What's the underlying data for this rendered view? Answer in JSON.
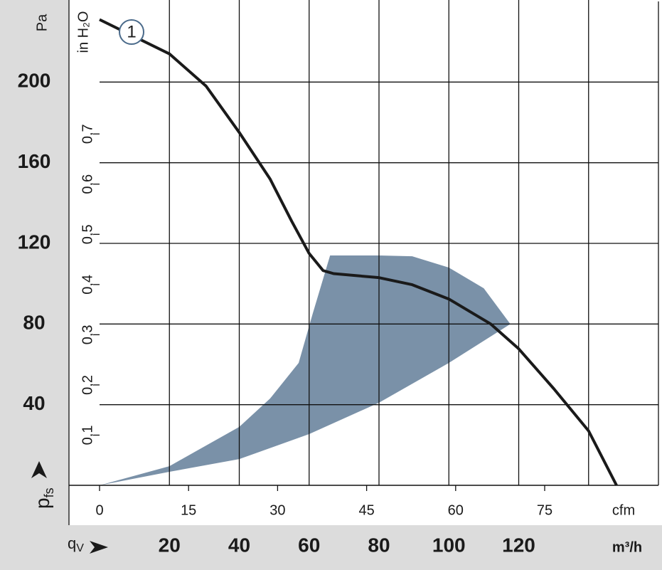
{
  "chart_data": {
    "type": "line",
    "ylabel_unit": "Pa",
    "ylabel": "p",
    "ylabel_sub": "fs",
    "y2label_unit": "in H₂O",
    "xlabel": "q",
    "xlabel_sub": "V",
    "xlabel_unit": "m³/h",
    "x2label_unit": "cfm",
    "xlim": [
      0,
      160
    ],
    "xticks": [
      20,
      40,
      60,
      80,
      100,
      120
    ],
    "xgrid": [
      20,
      40,
      60,
      80,
      100,
      120,
      140
    ],
    "ylim": [
      0,
      240
    ],
    "yticks": [
      40,
      80,
      120,
      160,
      200
    ],
    "x2lim": [
      0,
      94.17
    ],
    "x2ticks": [
      0,
      15,
      30,
      45,
      60,
      75
    ],
    "y2lim": [
      0,
      0.964
    ],
    "y2ticks": [
      {
        "value": 0.1,
        "label": "0,1"
      },
      {
        "value": 0.2,
        "label": "0,2"
      },
      {
        "value": 0.3,
        "label": "0,3"
      },
      {
        "value": 0.4,
        "label": "0,4"
      },
      {
        "value": 0.5,
        "label": "0,5"
      },
      {
        "value": 0.6,
        "label": "0,6"
      },
      {
        "value": 0.7,
        "label": "0,7"
      }
    ],
    "grid": true,
    "region": {
      "color": "#7a91a8",
      "x": [
        0,
        20,
        40,
        60,
        80,
        100,
        117.6,
        110,
        100,
        89.5,
        80,
        66,
        61,
        57,
        48.8,
        40,
        20
      ],
      "values": [
        0,
        6.7,
        13,
        25.4,
        41,
        60.7,
        80,
        97.7,
        108,
        113.6,
        114,
        114,
        85,
        60.7,
        43,
        29,
        9.5
      ]
    },
    "series": [
      {
        "name": "1",
        "color": "#1a1a1a",
        "x": [
          0,
          20,
          30.5,
          40,
          48.8,
          55,
          60,
          64,
          67,
          80,
          89.5,
          100,
          112,
          120,
          130,
          140,
          148
        ],
        "values": [
          231,
          214,
          198,
          175,
          152,
          131,
          115,
          106.5,
          105,
          103,
          99.5,
          92.4,
          80,
          67.7,
          48,
          27,
          0
        ]
      }
    ]
  }
}
